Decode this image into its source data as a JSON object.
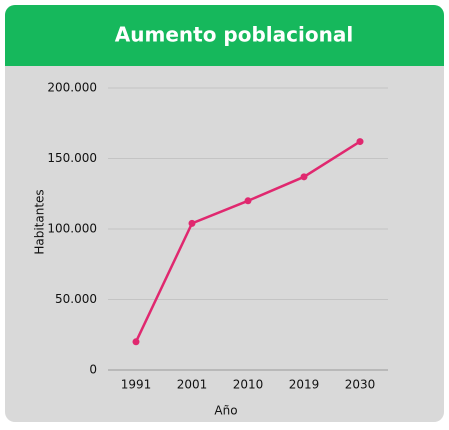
{
  "chart_data": {
    "type": "line",
    "title": "Aumento poblacional",
    "x_label": "Año",
    "y_label": "Habitantes",
    "categories": [
      "1991",
      "2001",
      "2010",
      "2019",
      "2030"
    ],
    "values": [
      20000,
      104000,
      120000,
      137000,
      162000
    ],
    "color": "#e0286f",
    "ylim": [
      0,
      200000
    ],
    "yticks": [
      0,
      {
        "value": 50000,
        "label": "50.000"
      },
      {
        "value": 100000,
        "label": "100.000"
      },
      {
        "value": 150000,
        "label": "150.000"
      },
      {
        "value": 200000,
        "label": "200.000"
      }
    ],
    "grid": true
  }
}
